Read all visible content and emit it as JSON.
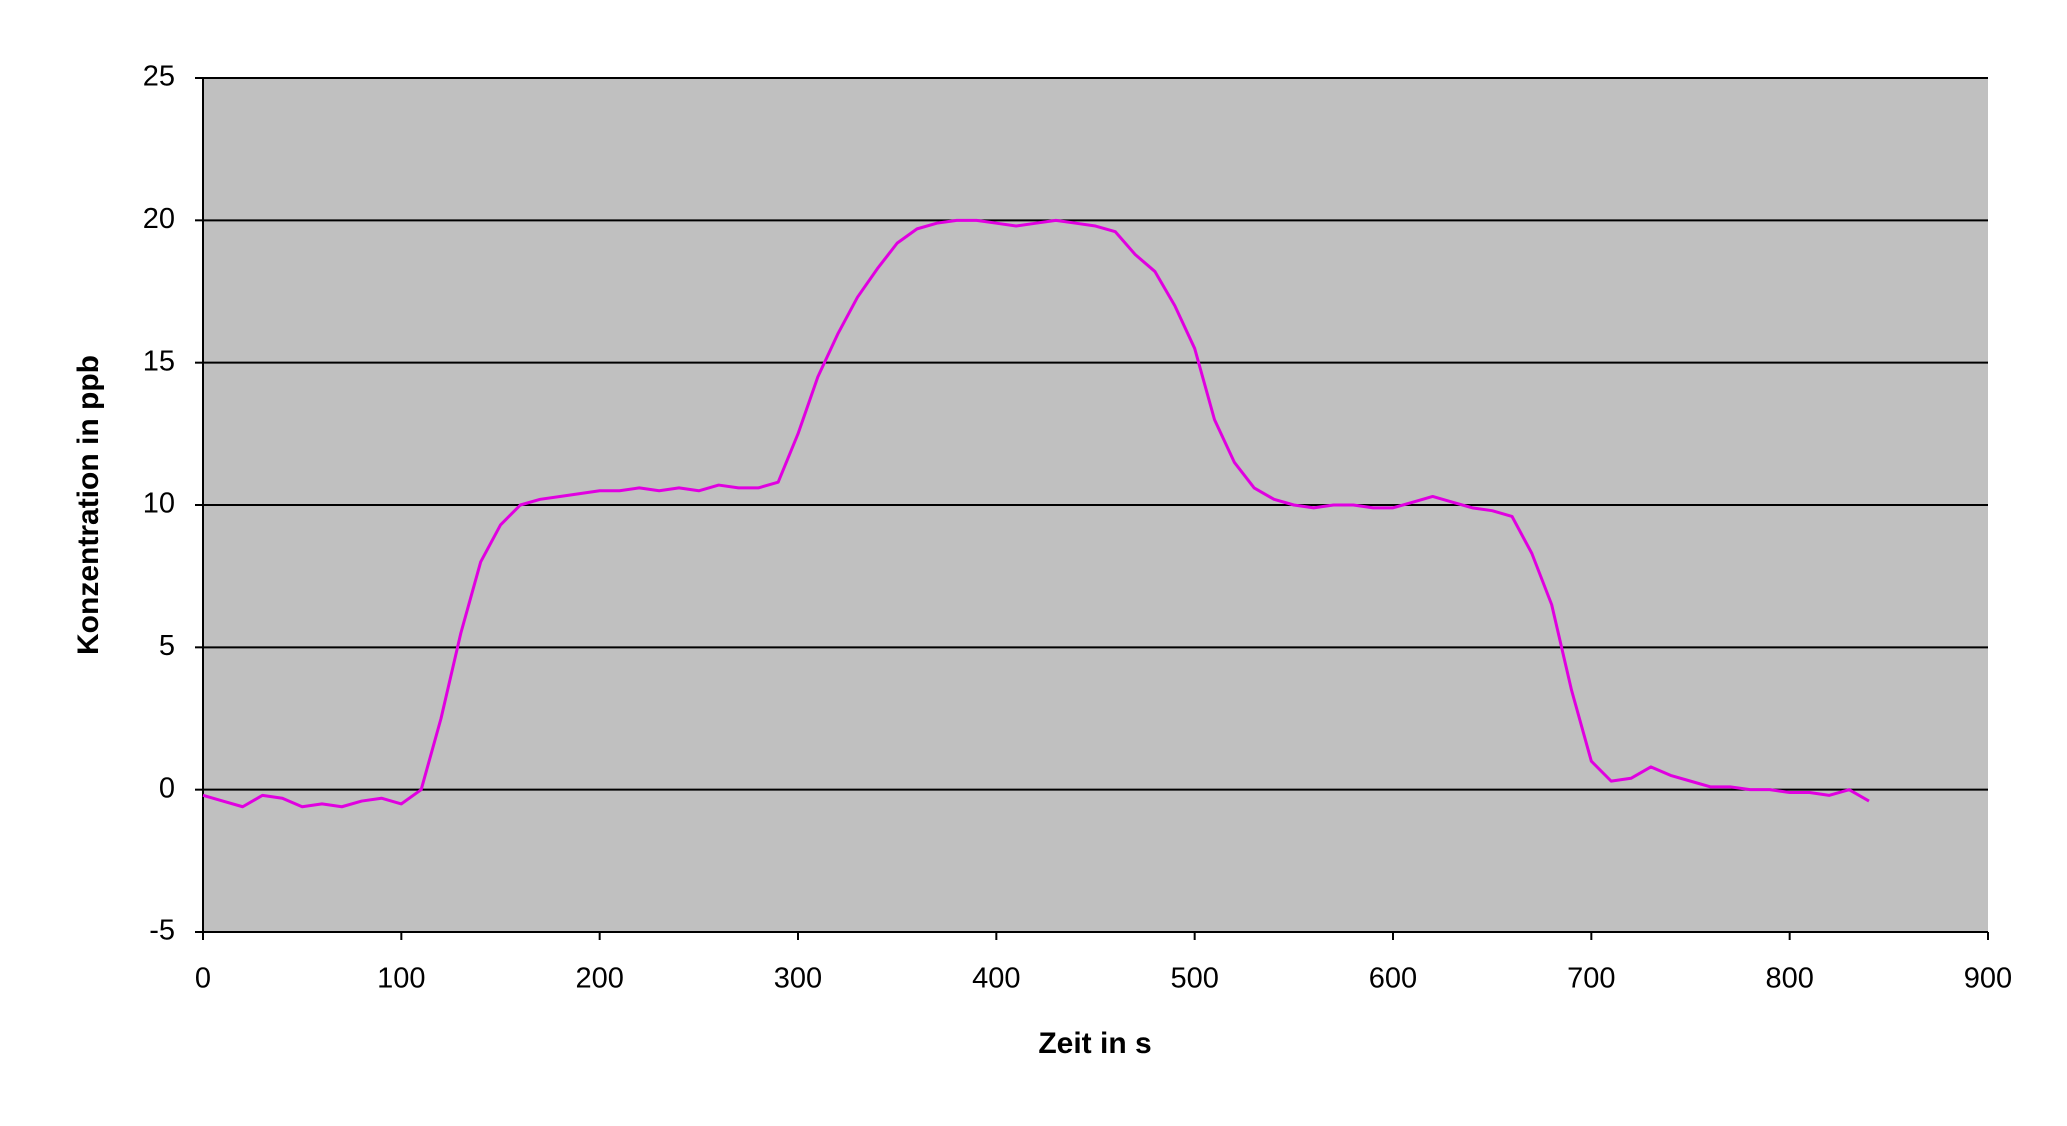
{
  "chart_data": {
    "type": "line",
    "x_label": "Zeit in s",
    "y_label": "Konzentration in ppb",
    "xlim": [
      0,
      900
    ],
    "xticks": [
      0,
      100,
      200,
      300,
      400,
      500,
      600,
      700,
      800,
      900
    ],
    "ylim": [
      -5,
      25
    ],
    "yticks": [
      -5,
      0,
      5,
      10,
      15,
      20,
      25
    ],
    "grid": true,
    "series": [
      {
        "color": "#e000e0",
        "x": [
          0,
          10,
          20,
          30,
          40,
          50,
          60,
          70,
          80,
          90,
          100,
          110,
          120,
          130,
          140,
          150,
          160,
          170,
          180,
          190,
          200,
          210,
          220,
          230,
          240,
          250,
          260,
          270,
          280,
          290,
          300,
          310,
          320,
          330,
          340,
          350,
          360,
          370,
          380,
          390,
          400,
          410,
          420,
          430,
          440,
          450,
          460,
          470,
          480,
          490,
          500,
          510,
          520,
          530,
          540,
          550,
          560,
          570,
          580,
          590,
          600,
          610,
          620,
          630,
          640,
          650,
          660,
          670,
          680,
          690,
          700,
          710,
          720,
          730,
          740,
          750,
          760,
          770,
          780,
          790,
          800,
          810,
          820,
          830,
          840
        ],
        "values": [
          -0.2,
          -0.4,
          -0.6,
          -0.2,
          -0.3,
          -0.6,
          -0.5,
          -0.6,
          -0.4,
          -0.3,
          -0.5,
          0,
          2.5,
          5.5,
          8,
          9.3,
          10,
          10.2,
          10.3,
          10.4,
          10.5,
          10.5,
          10.6,
          10.5,
          10.6,
          10.5,
          10.7,
          10.6,
          10.6,
          10.8,
          12.5,
          14.5,
          16,
          17.3,
          18.3,
          19.2,
          19.7,
          19.9,
          20,
          20,
          19.9,
          19.8,
          19.9,
          20,
          19.9,
          19.8,
          19.6,
          18.8,
          18.2,
          17,
          15.5,
          13,
          11.5,
          10.6,
          10.2,
          10,
          9.9,
          10,
          10,
          9.9,
          9.9,
          10.1,
          10.3,
          10.1,
          9.9,
          9.8,
          9.6,
          8.3,
          6.5,
          3.5,
          1,
          0.3,
          0.4,
          0.8,
          0.5,
          0.3,
          0.1,
          0.1,
          0,
          0,
          -0.1,
          -0.1,
          -0.2,
          0,
          -0.4
        ]
      }
    ]
  }
}
